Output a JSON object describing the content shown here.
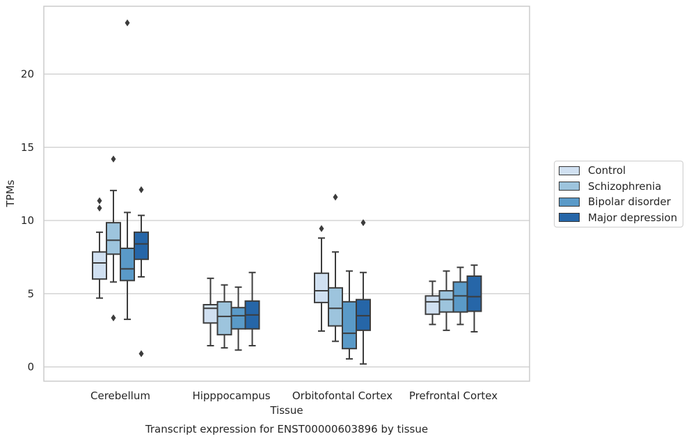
{
  "chart_data": {
    "type": "box",
    "title": "Transcript expression for ENST00000603896 by tissue",
    "xlabel": "Tissue",
    "ylabel": "TPMs",
    "ylim": [
      -1,
      24.7
    ],
    "yticks": [
      0,
      5,
      10,
      15,
      20
    ],
    "grid": "horizontal",
    "legend_position": "right",
    "categories": [
      "Cerebellum",
      "Hipppocampus",
      "Orbitofontal Cortex",
      "Prefrontal Cortex"
    ],
    "series": [
      {
        "name": "Control",
        "color": "#d0e0f1",
        "boxes": [
          {
            "whislo": 4.7,
            "q1": 6.0,
            "med": 7.1,
            "q3": 7.85,
            "whishi": 9.2,
            "fliers": [
              10.85,
              11.35
            ]
          },
          {
            "whislo": 1.45,
            "q1": 3.0,
            "med": 4.0,
            "q3": 4.25,
            "whishi": 6.05,
            "fliers": []
          },
          {
            "whislo": 2.45,
            "q1": 4.4,
            "med": 5.2,
            "q3": 6.4,
            "whishi": 8.8,
            "fliers": [
              9.45
            ]
          },
          {
            "whislo": 2.9,
            "q1": 3.6,
            "med": 4.45,
            "q3": 4.85,
            "whishi": 5.85,
            "fliers": []
          }
        ]
      },
      {
        "name": "Schizophrenia",
        "color": "#9dc4dd",
        "boxes": [
          {
            "whislo": 5.8,
            "q1": 7.7,
            "med": 8.65,
            "q3": 9.85,
            "whishi": 12.05,
            "fliers": [
              14.2,
              3.35
            ]
          },
          {
            "whislo": 1.3,
            "q1": 2.2,
            "med": 3.45,
            "q3": 4.45,
            "whishi": 5.6,
            "fliers": []
          },
          {
            "whislo": 1.75,
            "q1": 2.8,
            "med": 4.0,
            "q3": 5.4,
            "whishi": 7.85,
            "fliers": [
              11.6
            ]
          },
          {
            "whislo": 2.5,
            "q1": 3.75,
            "med": 4.6,
            "q3": 5.2,
            "whishi": 6.55,
            "fliers": []
          }
        ]
      },
      {
        "name": "Bipolar disorder",
        "color": "#5a9ac8",
        "boxes": [
          {
            "whislo": 3.25,
            "q1": 5.9,
            "med": 6.7,
            "q3": 8.1,
            "whishi": 10.55,
            "fliers": [
              23.5
            ]
          },
          {
            "whislo": 1.15,
            "q1": 2.6,
            "med": 3.5,
            "q3": 4.05,
            "whishi": 5.45,
            "fliers": []
          },
          {
            "whislo": 0.55,
            "q1": 1.25,
            "med": 2.3,
            "q3": 4.45,
            "whishi": 6.55,
            "fliers": []
          },
          {
            "whislo": 2.9,
            "q1": 3.75,
            "med": 4.85,
            "q3": 5.8,
            "whishi": 6.8,
            "fliers": []
          }
        ]
      },
      {
        "name": "Major depression",
        "color": "#2666a8",
        "boxes": [
          {
            "whislo": 6.15,
            "q1": 7.35,
            "med": 8.4,
            "q3": 9.2,
            "whishi": 10.35,
            "fliers": [
              12.1,
              0.9
            ]
          },
          {
            "whislo": 1.45,
            "q1": 2.6,
            "med": 3.55,
            "q3": 4.5,
            "whishi": 6.45,
            "fliers": []
          },
          {
            "whislo": 0.2,
            "q1": 2.5,
            "med": 3.5,
            "q3": 4.6,
            "whishi": 6.45,
            "fliers": [
              9.85
            ]
          },
          {
            "whislo": 2.4,
            "q1": 3.8,
            "med": 4.8,
            "q3": 6.2,
            "whishi": 6.95,
            "fliers": []
          }
        ]
      }
    ]
  }
}
